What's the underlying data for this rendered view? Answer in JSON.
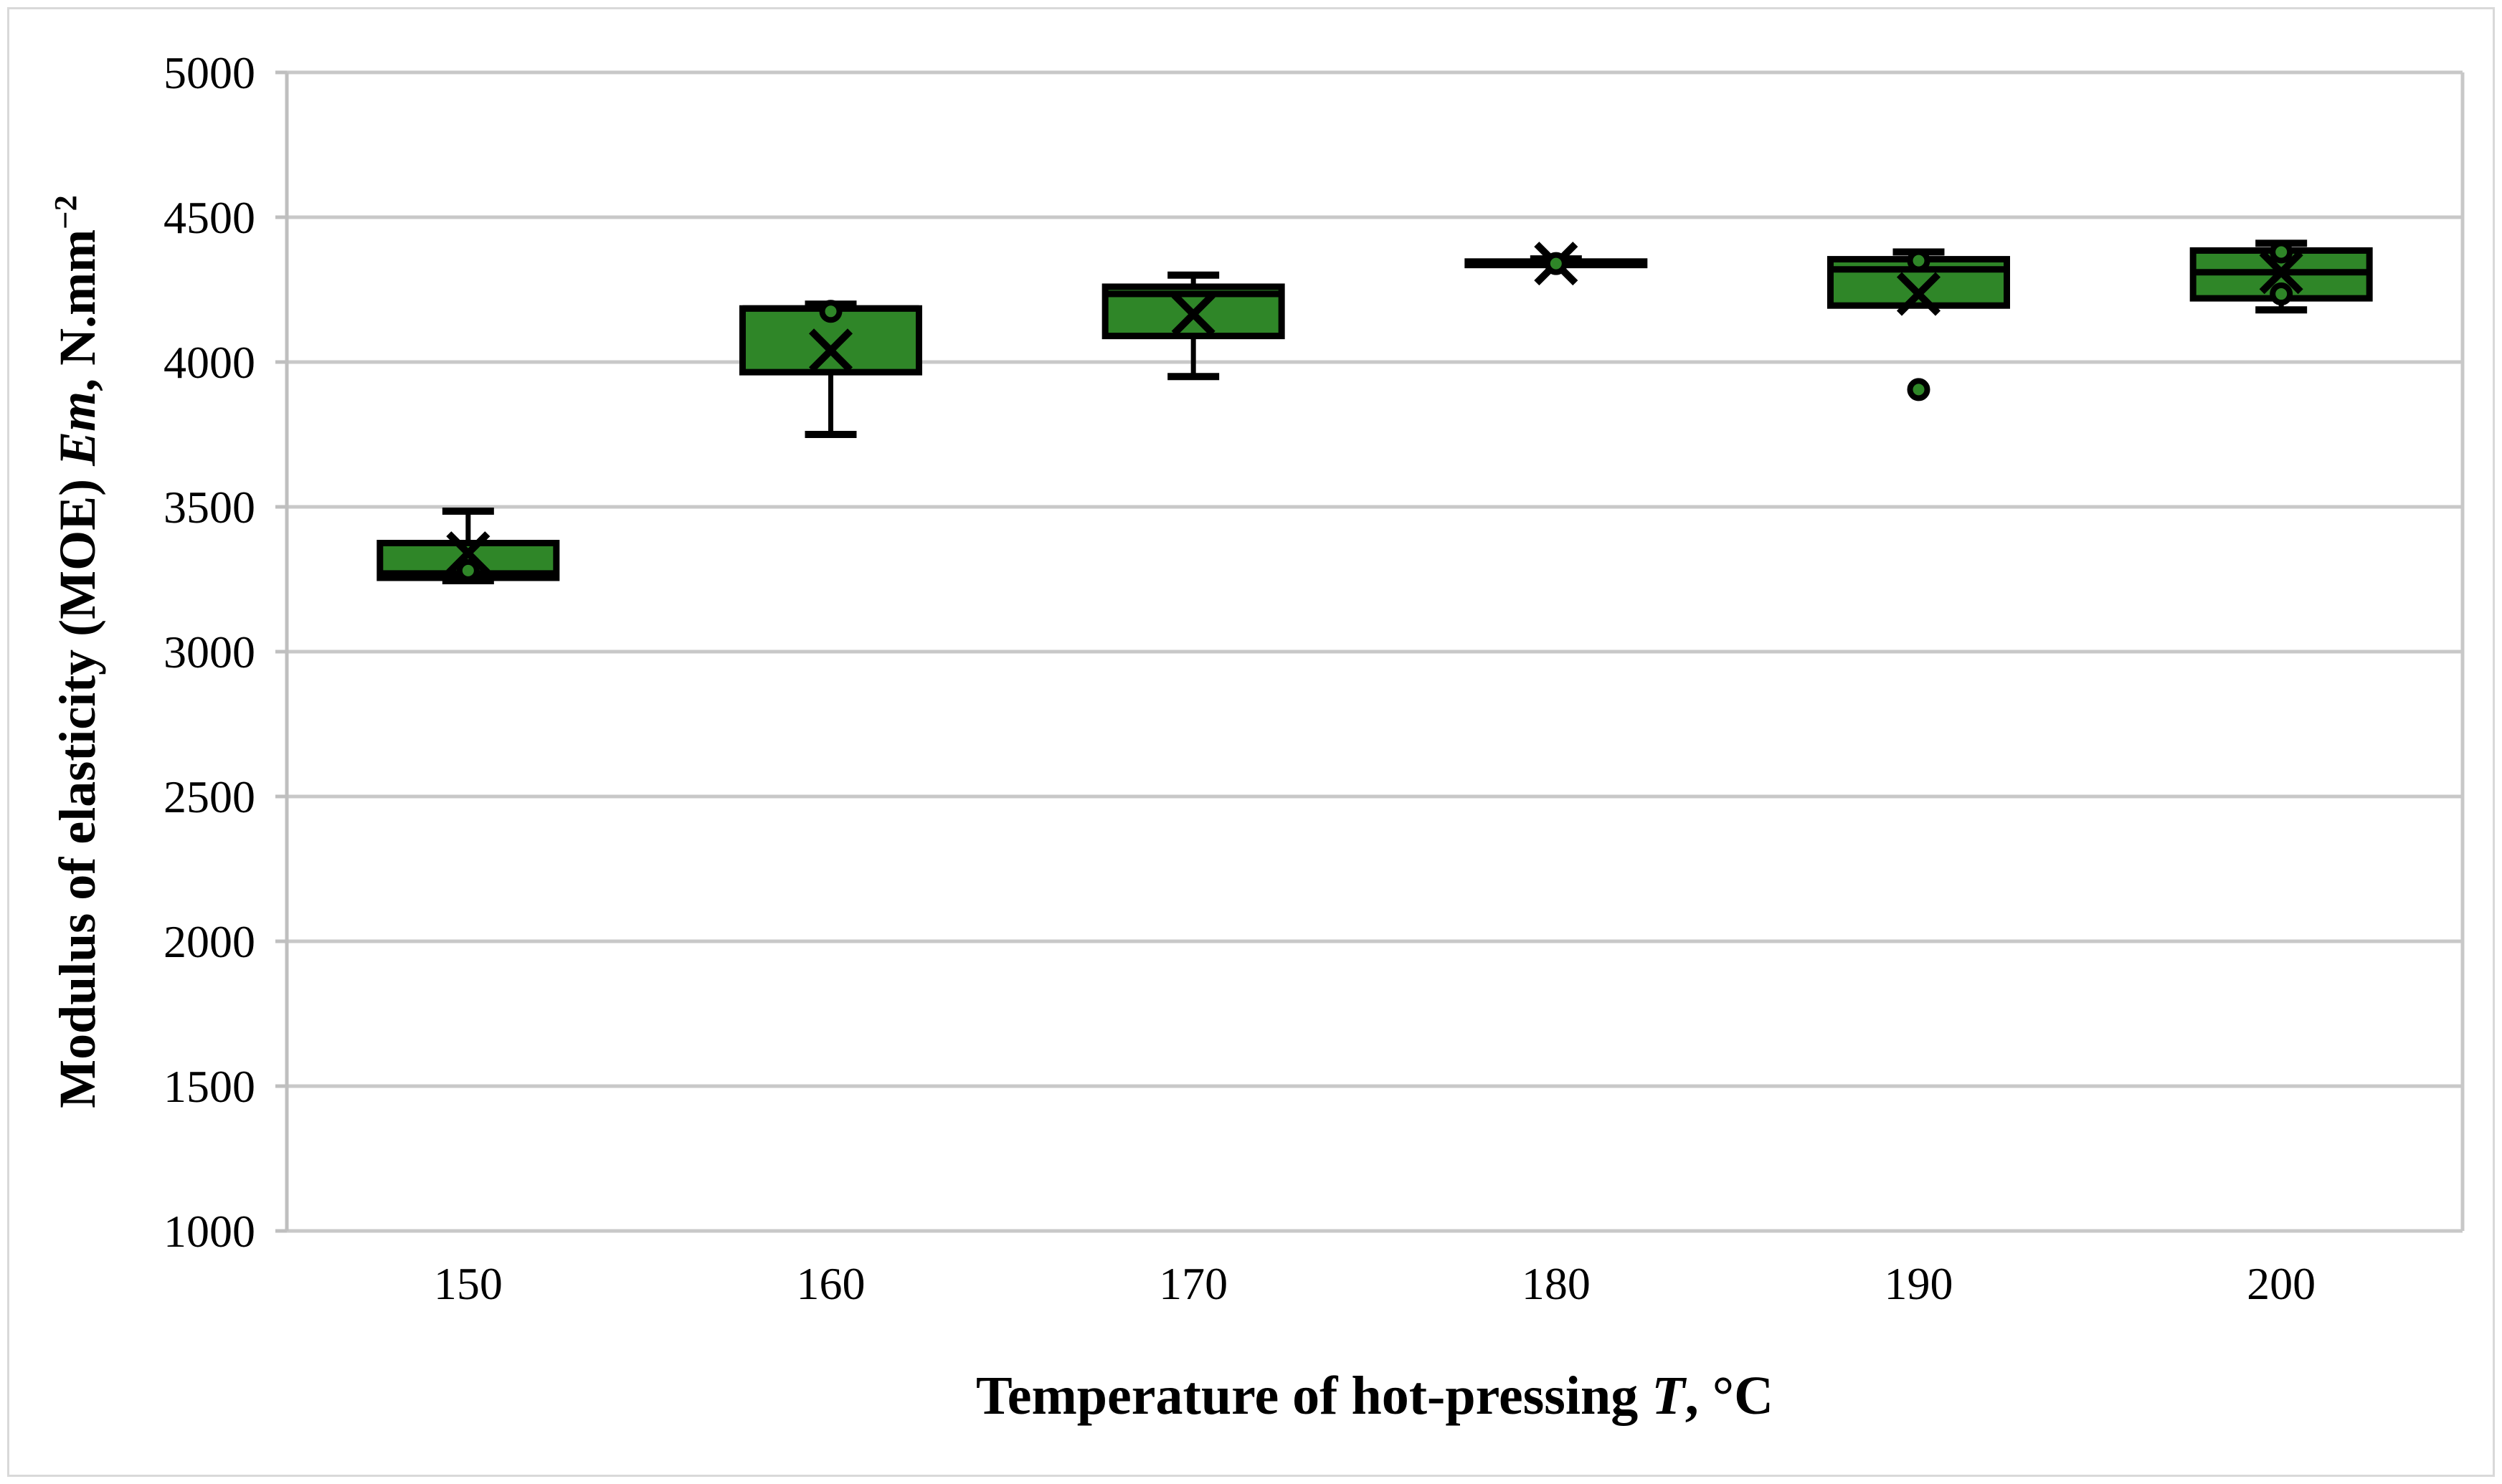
{
  "figure": {
    "background": "#FFFFFF",
    "border_color": "#D9D9D9"
  },
  "chart_data": {
    "type": "boxplot",
    "title": "",
    "xlabel": "Temperature of hot-pressing T, °C",
    "ylabel": "Modulus of elasticity (MOE) Em, N.mm−2",
    "xlabel_parts": [
      {
        "text": "Temperature of hot-pressing ",
        "italic": false,
        "super": false
      },
      {
        "text": "T",
        "italic": true,
        "super": false
      },
      {
        "text": ", °C",
        "italic": false,
        "super": false
      }
    ],
    "ylabel_parts": [
      {
        "text": "Modulus of elasticity (MOE) ",
        "italic": false,
        "super": false
      },
      {
        "text": "Em",
        "italic": true,
        "super": false
      },
      {
        "text": ", N.mm",
        "italic": false,
        "super": false
      },
      {
        "text": "−2",
        "italic": false,
        "super": true
      }
    ],
    "categories": [
      "150",
      "160",
      "170",
      "180",
      "190",
      "200"
    ],
    "ylim": [
      1000,
      5000
    ],
    "ytick_step": 500,
    "yticks": [
      1000,
      1500,
      2000,
      2500,
      3000,
      3500,
      4000,
      4500,
      5000
    ],
    "grid": true,
    "legend": false,
    "series": [
      {
        "category": "150",
        "whisker_low": 3245,
        "q1": 3255,
        "median": 3270,
        "q3": 3375,
        "whisker_high": 3485,
        "mean": 3340,
        "points": [
          3280
        ]
      },
      {
        "category": "160",
        "whisker_low": 3750,
        "q1": 3965,
        "median": 4185,
        "q3": 4185,
        "whisker_high": 4200,
        "mean": 4040,
        "points": [
          4175
        ]
      },
      {
        "category": "170",
        "whisker_low": 3950,
        "q1": 4090,
        "median": 4235,
        "q3": 4260,
        "whisker_high": 4300,
        "mean": 4165,
        "points": []
      },
      {
        "category": "180",
        "whisker_low": 4335,
        "q1": 4335,
        "median": 4341,
        "q3": 4347,
        "whisker_high": 4356,
        "mean": 4340,
        "points": [
          4340
        ]
      },
      {
        "category": "190",
        "whisker_low": 4195,
        "q1": 4195,
        "median": 4320,
        "q3": 4355,
        "whisker_high": 4380,
        "mean": 4235,
        "points": [
          4350,
          3905
        ]
      },
      {
        "category": "200",
        "whisker_low": 4180,
        "q1": 4220,
        "median": 4310,
        "q3": 4385,
        "whisker_high": 4410,
        "mean": 4310,
        "points": [
          4380,
          4235
        ]
      }
    ],
    "colors": {
      "box_fill": "#2F8628",
      "box_border": "#000000",
      "median_line": "#000000",
      "whisker": "#000000",
      "mean_marker": "#000000",
      "point_fill": "#2F8628",
      "point_border": "#000000",
      "gridline": "#C8C8C8",
      "axis_line": "#BFBFBF",
      "text": "#000000"
    }
  }
}
